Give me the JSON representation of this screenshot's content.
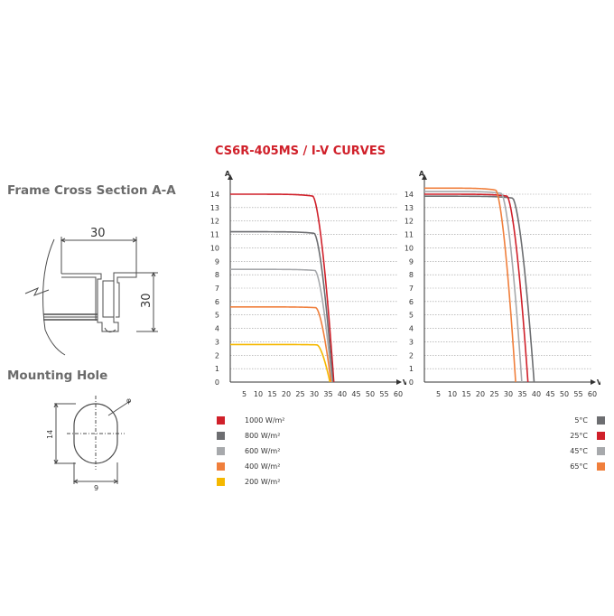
{
  "frame_section": {
    "title": "Frame Cross Section A-A",
    "dim_width": "30",
    "dim_height": "30"
  },
  "mounting_hole": {
    "title": "Mounting Hole",
    "dim_height": "14",
    "dim_width": "9",
    "dim_diameter": "φ"
  },
  "chart_title": "CS6R-405MS / I-V CURVES",
  "chart_data": [
    {
      "type": "line",
      "ylabel": "A",
      "xlabel": "V",
      "xlim": [
        0,
        60
      ],
      "ylim": [
        0,
        14
      ],
      "x_ticks": [
        5,
        10,
        15,
        20,
        25,
        30,
        35,
        40,
        45,
        50,
        55,
        60
      ],
      "y_ticks": [
        0,
        1,
        2,
        3,
        4,
        5,
        6,
        7,
        8,
        9,
        10,
        11,
        12,
        13,
        14
      ],
      "grid": true,
      "series": [
        {
          "name": "1000 W/m²",
          "color": "#d0202a",
          "isc": 14.0,
          "knee": 29.5,
          "voc": 37.0
        },
        {
          "name": "800 W/m²",
          "color": "#6d6e71",
          "isc": 11.2,
          "knee": 30.0,
          "voc": 36.6
        },
        {
          "name": "600 W/m²",
          "color": "#a7a9ac",
          "isc": 8.4,
          "knee": 30.3,
          "voc": 36.3
        },
        {
          "name": "400 W/m²",
          "color": "#f07f3c",
          "isc": 5.6,
          "knee": 30.6,
          "voc": 36.0
        },
        {
          "name": "200 W/m²",
          "color": "#f5b800",
          "isc": 2.8,
          "knee": 31.0,
          "voc": 35.6
        }
      ]
    },
    {
      "type": "line",
      "ylabel": "A",
      "xlabel": "V",
      "xlim": [
        0,
        60
      ],
      "ylim": [
        0,
        14
      ],
      "x_ticks": [
        5,
        10,
        15,
        20,
        25,
        30,
        35,
        40,
        45,
        50,
        55,
        60
      ],
      "y_ticks": [
        0,
        1,
        2,
        3,
        4,
        5,
        6,
        7,
        8,
        9,
        10,
        11,
        12,
        13,
        14
      ],
      "grid": true,
      "series": [
        {
          "name": "5°C",
          "color": "#6d6e71",
          "isc": 13.85,
          "knee": 31.5,
          "voc": 39.2
        },
        {
          "name": "25°C",
          "color": "#d0202a",
          "isc": 14.0,
          "knee": 29.5,
          "voc": 37.0
        },
        {
          "name": "45°C",
          "color": "#a7a9ac",
          "isc": 14.2,
          "knee": 27.5,
          "voc": 34.8
        },
        {
          "name": "65°C",
          "color": "#f07f3c",
          "isc": 14.45,
          "knee": 25.5,
          "voc": 32.6
        }
      ]
    }
  ]
}
